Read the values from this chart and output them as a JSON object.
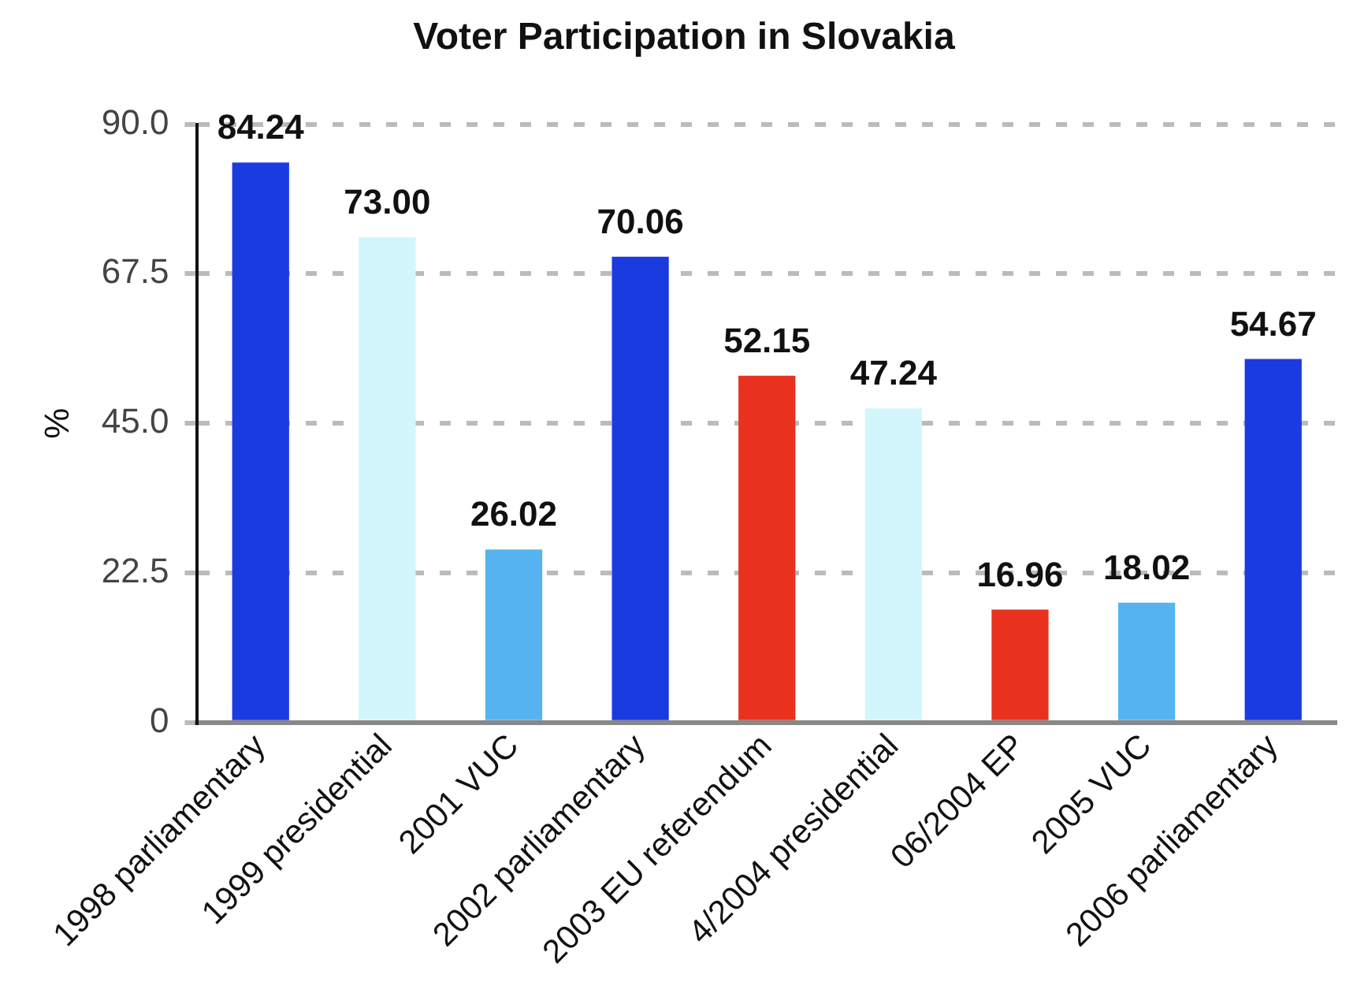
{
  "chart_data": {
    "type": "bar",
    "title": "Voter Participation in Slovakia",
    "ylabel": "%",
    "categories": [
      "1998 parliamentary",
      "1999 presidential",
      "2001 VUC",
      "2002 parliamentary",
      "2003 EU referendum",
      "4/2004 presidential",
      "06/2004 EP",
      "2005 VUC",
      "2006 parliamentary"
    ],
    "values": [
      84.24,
      73.0,
      26.02,
      70.06,
      52.15,
      47.24,
      16.96,
      18.02,
      54.67
    ],
    "colors": [
      "#1a3be0",
      "#d2f6fb",
      "#55b4f0",
      "#1a3be0",
      "#e8321e",
      "#d2f6fb",
      "#e8321e",
      "#55b4f0",
      "#1a3be0"
    ],
    "value_labels": [
      "84.24",
      "73.00",
      "26.02",
      "70.06",
      "52.15",
      "47.24",
      "16.96",
      "18.02",
      "54.67"
    ],
    "ylim": [
      0,
      90
    ],
    "yticks": [
      {
        "value": 0,
        "label": "0"
      },
      {
        "value": 22.5,
        "label": "22.5"
      },
      {
        "value": 45,
        "label": "45.0"
      },
      {
        "value": 67.5,
        "label": "67.5"
      },
      {
        "value": 90,
        "label": "90.0"
      }
    ],
    "grid": "y",
    "legend": false
  }
}
